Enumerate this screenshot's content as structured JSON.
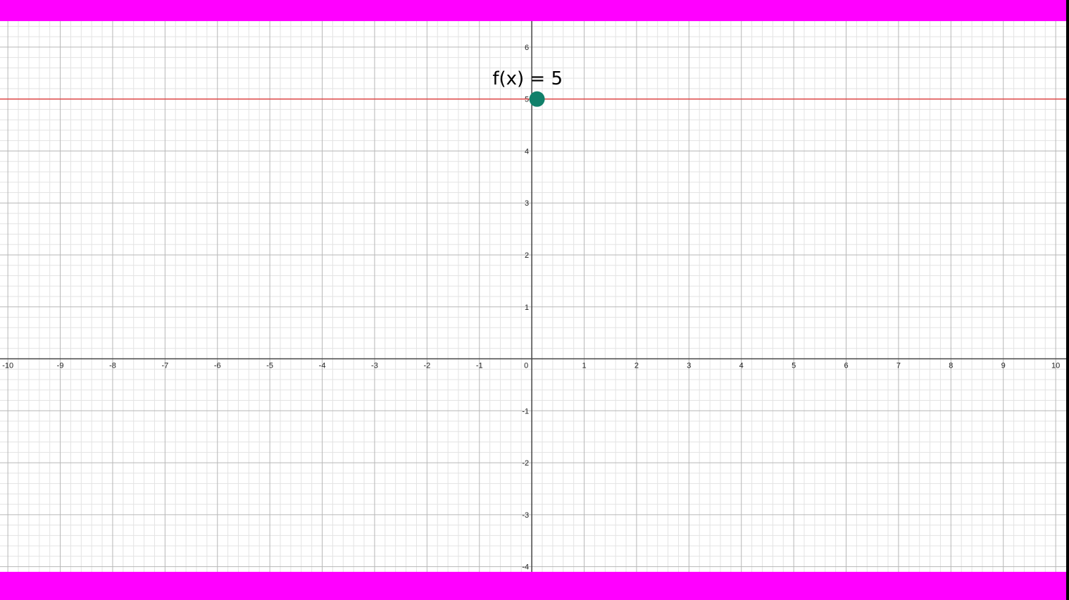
{
  "colors": {
    "frame_band": "#ff00ff",
    "background": "#ffffff",
    "minor_grid": "#e3e3e3",
    "major_grid": "#b7b7b7",
    "axis": "#444444",
    "function_line": "#dd4444",
    "point": "#11806a"
  },
  "chart_data": {
    "type": "line",
    "title": "",
    "xlabel": "",
    "ylabel": "",
    "xlim": [
      -10.15,
      10.2
    ],
    "ylim": [
      -4.1,
      6.5
    ],
    "grid": true,
    "minor_step": 0.2,
    "x_ticks": [
      "-10",
      "-9",
      "-8",
      "-7",
      "-6",
      "-5",
      "-4",
      "-3",
      "-2",
      "-1",
      "0",
      "1",
      "2",
      "3",
      "4",
      "5",
      "6",
      "7",
      "8",
      "9",
      "10"
    ],
    "y_ticks": [
      "6",
      "5",
      "4",
      "3",
      "2",
      "1",
      "-1",
      "-2",
      "-3",
      "-4"
    ],
    "series": [
      {
        "name": "f(x) = 5",
        "x": [
          -10.15,
          10.2
        ],
        "y": [
          5,
          5
        ]
      }
    ],
    "points": [
      {
        "x": 0.1,
        "y": 5
      }
    ],
    "annotations": [
      {
        "text": "f(x) = 5",
        "x": -0.08,
        "y": 5.4
      }
    ]
  }
}
